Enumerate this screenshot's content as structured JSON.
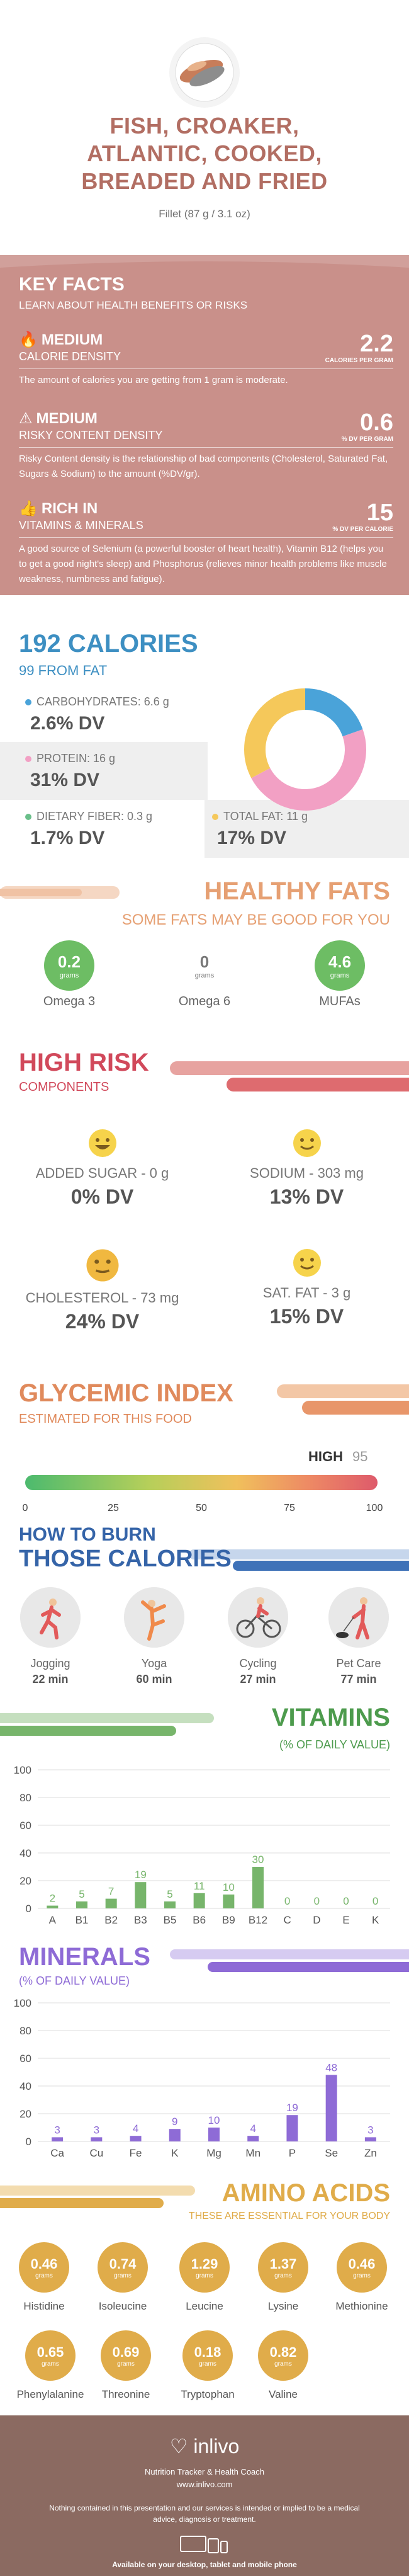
{
  "header": {
    "title_lines": [
      "FISH, CROAKER,",
      "ATLANTIC, COOKED,",
      "BREADED AND FRIED"
    ],
    "serving": "Fillet (87 g / 3.1 oz)"
  },
  "key_facts": {
    "title": "KEY FACTS",
    "subtitle": "LEARN ABOUT HEALTH BENEFITS OR RISKS",
    "rows": [
      {
        "level": "MEDIUM",
        "label": "CALORIE DENSITY",
        "value": "2.2",
        "unit": "CALORIES PER GRAM",
        "desc": "The amount of calories you are getting from 1 gram is moderate."
      },
      {
        "level": "MEDIUM",
        "label": "RISKY CONTENT DENSITY",
        "value": "0.6",
        "unit": "% DV PER GRAM",
        "desc": "Risky Content density is the relationship of bad components (Cholesterol, Saturated Fat, Sugars & Sodium) to the amount (%DV/gr)."
      },
      {
        "level": "RICH  IN",
        "label": "VITAMINS & MINERALS",
        "value": "15",
        "unit": "% DV PER CALORIE",
        "desc": "A good source of Selenium (a powerful booster of heart health), Vitamin B12 (helps you to get a good night's sleep) and Phosphorus (relieves minor health problems like muscle weakness, numbness and fatigue)."
      }
    ]
  },
  "calories": {
    "title": "192 CALORIES",
    "subtitle": "99 FROM FAT",
    "nutrients": [
      {
        "label": "CARBOHYDRATES: 6.6 g",
        "dv": "2.6% DV",
        "color": "#4aa3d9"
      },
      {
        "label": "PROTEIN: 16 g",
        "dv": "31% DV",
        "color": "#f2a0c4"
      },
      {
        "label": "DIETARY FIBER: 0.3 g",
        "dv": "1.7% DV",
        "color": "#6abf8a"
      },
      {
        "label": "TOTAL FAT: 11 g",
        "dv": "17% DV",
        "color": "#f5c85a"
      }
    ],
    "donut": [
      {
        "name": "Carbohydrates",
        "value": 6.6,
        "color": "#4aa3d9"
      },
      {
        "name": "Protein",
        "value": 16,
        "color": "#f2a0c4"
      },
      {
        "name": "Fat",
        "value": 11,
        "color": "#f5c85a"
      }
    ]
  },
  "healthy_fats": {
    "title": "HEALTHY FATS",
    "subtitle": "SOME FATS MAY BE GOOD FOR YOU",
    "items": [
      {
        "value": "0.2",
        "unit": "grams",
        "name": "Omega 3",
        "filled": true
      },
      {
        "value": "0",
        "unit": "grams",
        "name": "Omega 6",
        "filled": false
      },
      {
        "value": "4.6",
        "unit": "grams",
        "name": "MUFAs",
        "filled": true
      }
    ]
  },
  "high_risk": {
    "title": "HIGH RISK",
    "subtitle": "COMPONENTS",
    "items": [
      {
        "label": "ADDED SUGAR - 0 g",
        "dv": "0% DV",
        "face": "big-smile"
      },
      {
        "label": "SODIUM - 303 mg",
        "dv": "13% DV",
        "face": "smile"
      },
      {
        "label": "CHOLESTEROL - 73 mg",
        "dv": "24% DV",
        "face": "neutral"
      },
      {
        "label": "SAT. FAT - 3 g",
        "dv": "15% DV",
        "face": "smile"
      }
    ]
  },
  "glycemic": {
    "title": "GLYCEMIC INDEX",
    "subtitle": "ESTIMATED FOR THIS FOOD",
    "level": "HIGH",
    "value": "95",
    "ticks": [
      "0",
      "25",
      "50",
      "75",
      "100"
    ]
  },
  "burn": {
    "title_line1": "HOW TO BURN",
    "title_line2": "THOSE CALORIES",
    "activities": [
      {
        "name": "Jogging",
        "minutes": "22 min",
        "icon": "jogging-icon"
      },
      {
        "name": "Yoga",
        "minutes": "60 min",
        "icon": "yoga-icon"
      },
      {
        "name": "Cycling",
        "minutes": "27 min",
        "icon": "cycling-icon"
      },
      {
        "name": "Pet Care",
        "minutes": "77 min",
        "icon": "pet-care-icon"
      }
    ]
  },
  "vitamins": {
    "title": "VITAMINS",
    "subtitle": "(% OF DAILY VALUE)"
  },
  "minerals": {
    "title": "MINERALS",
    "subtitle": "(% OF DAILY VALUE)"
  },
  "chart_data": [
    {
      "type": "bar",
      "title": "VITAMINS",
      "ylabel": "(% OF DAILY VALUE)",
      "categories": [
        "A",
        "B1",
        "B2",
        "B3",
        "B5",
        "B6",
        "B9",
        "B12",
        "C",
        "D",
        "E",
        "K"
      ],
      "values": [
        2,
        5,
        7,
        19,
        5,
        11,
        10,
        30,
        0,
        0,
        0,
        0
      ],
      "ylim": [
        0,
        100
      ],
      "yticks": [
        0,
        20,
        40,
        60,
        80,
        100
      ],
      "color": "#77b56b",
      "grid": true
    },
    {
      "type": "bar",
      "title": "MINERALS",
      "ylabel": "(% OF DAILY VALUE)",
      "categories": [
        "Ca",
        "Cu",
        "Fe",
        "K",
        "Mg",
        "Mn",
        "P",
        "Se",
        "Zn"
      ],
      "values": [
        3,
        3,
        4,
        9,
        10,
        4,
        19,
        48,
        3
      ],
      "ylim": [
        0,
        100
      ],
      "yticks": [
        0,
        20,
        40,
        60,
        80,
        100
      ],
      "color": "#8e6bd6",
      "grid": true
    }
  ],
  "amino": {
    "title": "AMINO ACIDS",
    "subtitle": "THESE ARE ESSENTIAL FOR YOUR BODY",
    "unit": "grams",
    "items": [
      {
        "value": "0.46",
        "name": "Histidine"
      },
      {
        "value": "0.74",
        "name": "Isoleucine"
      },
      {
        "value": "1.29",
        "name": "Leucine"
      },
      {
        "value": "1.37",
        "name": "Lysine"
      },
      {
        "value": "0.46",
        "name": "Methionine"
      },
      {
        "value": "0.65",
        "name": "Phenylalanine"
      },
      {
        "value": "0.69",
        "name": "Threonine"
      },
      {
        "value": "0.18",
        "name": "Tryptophan"
      },
      {
        "value": "0.82",
        "name": "Valine"
      }
    ]
  },
  "footer": {
    "brand": "inlivo",
    "tagline": "Nutrition Tracker & Health Coach",
    "url": "www.inlivo.com",
    "disclaimer": "Nothing contained in this presentation and our services is intended or implied to be a medical advice, diagnosis or treatment.",
    "available": "Available on your desktop, tablet and mobile phone"
  }
}
